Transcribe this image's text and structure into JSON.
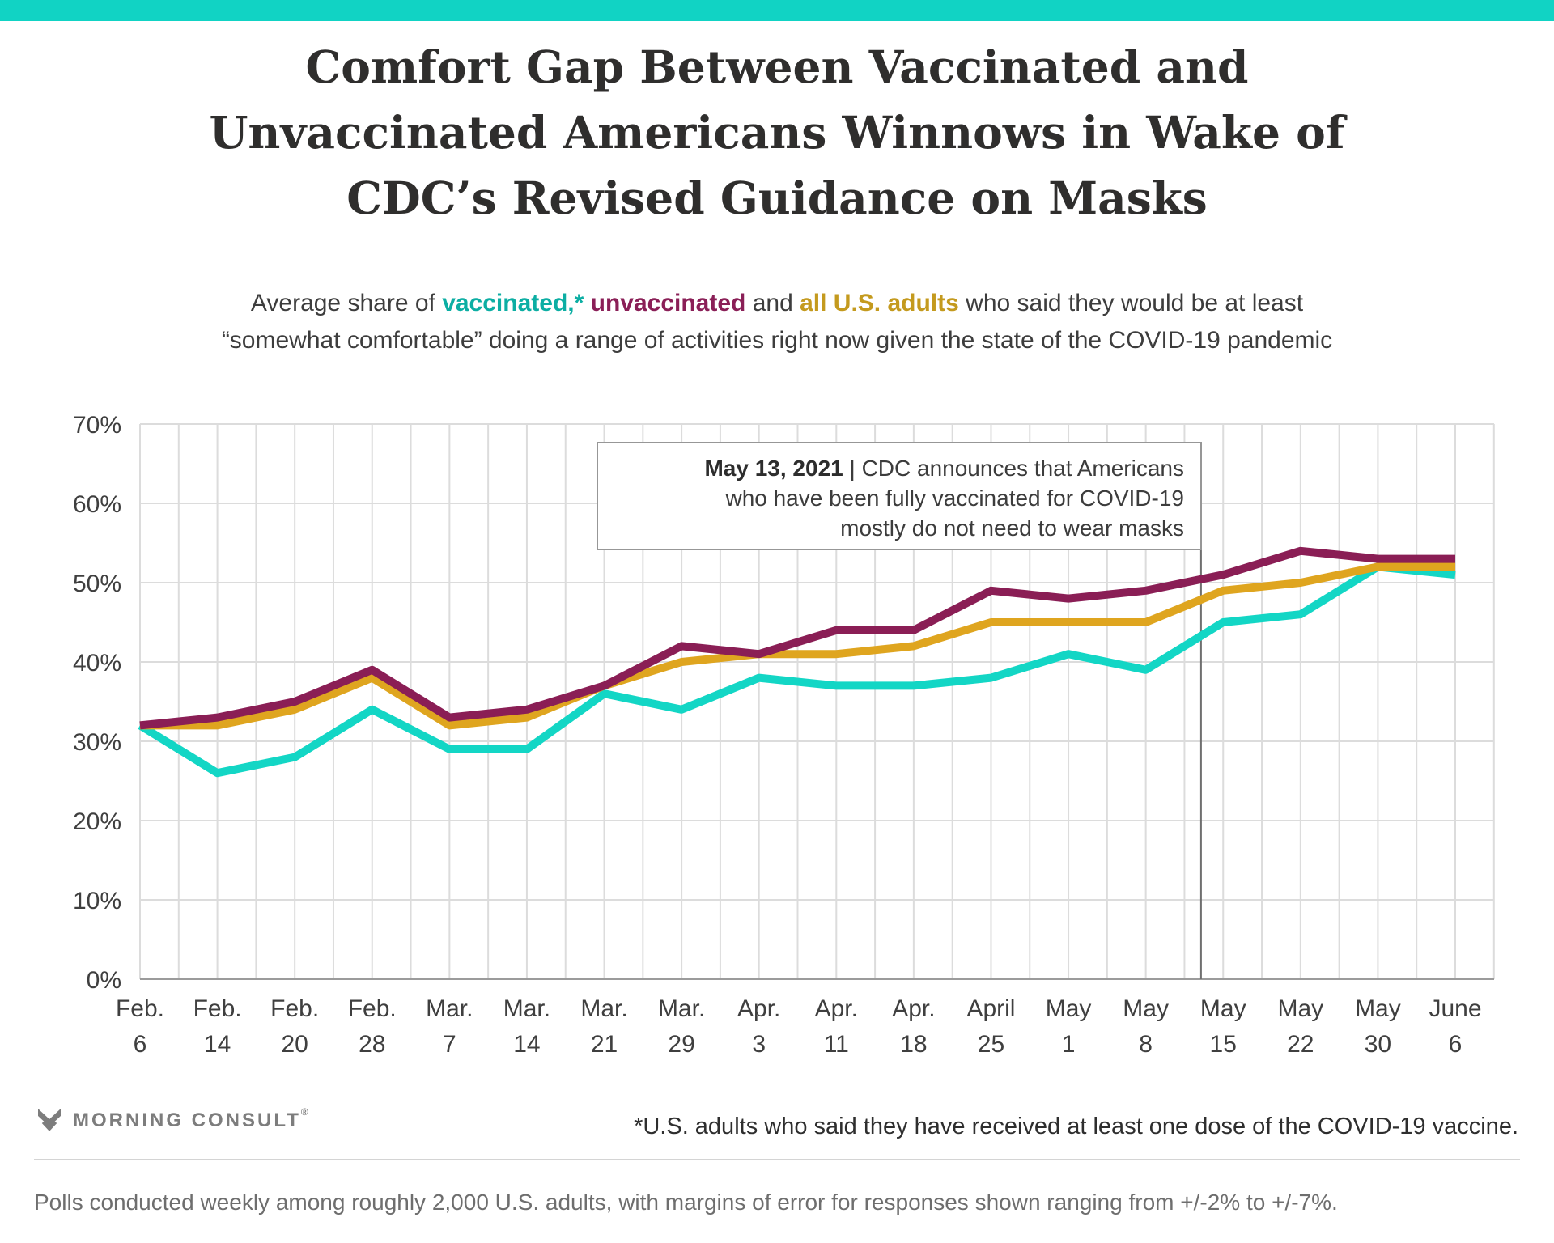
{
  "page": {
    "accent_bar_color": "#11d3c4",
    "background": "#ffffff"
  },
  "title": {
    "lines": [
      "Comfort Gap Between Vaccinated and",
      "Unvaccinated Americans Winnows in Wake of",
      "CDC’s Revised Guidance on Masks"
    ]
  },
  "subtitle": {
    "colors": {
      "body": "#3d3d3d",
      "teal": "#0caea3",
      "maroon": "#8a1f57",
      "gold": "#c49a1e"
    },
    "line1_parts": [
      {
        "text": "Average share of ",
        "color": "body",
        "bold": false
      },
      {
        "text": "vaccinated,*",
        "color": "teal",
        "bold": true
      },
      {
        "text": " ",
        "color": "body",
        "bold": false
      },
      {
        "text": "unvaccinated",
        "color": "maroon",
        "bold": true
      },
      {
        "text": " and ",
        "color": "body",
        "bold": false
      },
      {
        "text": "all U.S. adults",
        "color": "gold",
        "bold": true
      },
      {
        "text": " who said they would be at least",
        "color": "body",
        "bold": false
      }
    ],
    "line2": "“somewhat comfortable” doing a range of activities right now given the state of the COVID-19 pandemic"
  },
  "chart_data": {
    "type": "line",
    "title": "Comfort Gap Between Vaccinated and Unvaccinated Americans Winnows in Wake of CDC’s Revised Guidance on Masks",
    "xlabel": "",
    "ylabel": "",
    "grid": true,
    "categories": [
      "Feb. 6",
      "Feb. 14",
      "Feb. 20",
      "Feb. 28",
      "Mar. 7",
      "Mar. 14",
      "Mar. 21",
      "Mar. 29",
      "Apr. 3",
      "Apr. 11",
      "Apr. 18",
      "April 25",
      "May 1",
      "May 8",
      "May 15",
      "May 22",
      "May 30",
      "June 6"
    ],
    "category_label_lines": [
      [
        "Feb.",
        "6"
      ],
      [
        "Feb.",
        "14"
      ],
      [
        "Feb.",
        "20"
      ],
      [
        "Feb.",
        "28"
      ],
      [
        "Mar.",
        "7"
      ],
      [
        "Mar.",
        "14"
      ],
      [
        "Mar.",
        "21"
      ],
      [
        "Mar.",
        "29"
      ],
      [
        "Apr.",
        "3"
      ],
      [
        "Apr.",
        "11"
      ],
      [
        "Apr.",
        "18"
      ],
      [
        "April",
        "25"
      ],
      [
        "May",
        "1"
      ],
      [
        "May",
        "8"
      ],
      [
        "May",
        "15"
      ],
      [
        "May",
        "22"
      ],
      [
        "May",
        "30"
      ],
      [
        "June",
        "6"
      ]
    ],
    "y_axis": {
      "min": 0,
      "max": 70,
      "tick_step": 10,
      "tick_labels": [
        "0%",
        "10%",
        "20%",
        "30%",
        "40%",
        "50%",
        "60%",
        "70%"
      ]
    },
    "series": [
      {
        "name": "vaccinated",
        "color": "#13d6c5",
        "values": [
          32,
          26,
          28,
          34,
          29,
          29,
          36,
          34,
          38,
          37,
          37,
          38,
          41,
          39,
          45,
          46,
          52,
          51
        ]
      },
      {
        "name": "all U.S. adults",
        "color": "#dfa51f",
        "values": [
          32,
          32,
          34,
          38,
          32,
          33,
          37,
          40,
          41,
          41,
          42,
          45,
          45,
          45,
          49,
          50,
          52,
          52
        ]
      },
      {
        "name": "unvaccinated",
        "color": "#8a1e55",
        "values": [
          32,
          33,
          35,
          39,
          33,
          34,
          37,
          42,
          41,
          44,
          44,
          49,
          48,
          49,
          51,
          54,
          53,
          53
        ]
      }
    ],
    "annotation": {
      "bold": "May 13, 2021",
      "line1_rest": " | CDC announces that Americans",
      "line2": "who have been fully vaccinated for COVID-19",
      "line3": "mostly do not need to wear masks",
      "marker_index": 13.714
    }
  },
  "footer": {
    "brand": "MORNING CONSULT",
    "brand_reg": "®",
    "footnote": "*U.S. adults who said they have received at least one dose of the COVID-19 vaccine.",
    "methodology": "Polls conducted weekly among roughly 2,000 U.S. adults, with margins of error for responses shown ranging from +/-2% to +/-7%."
  }
}
